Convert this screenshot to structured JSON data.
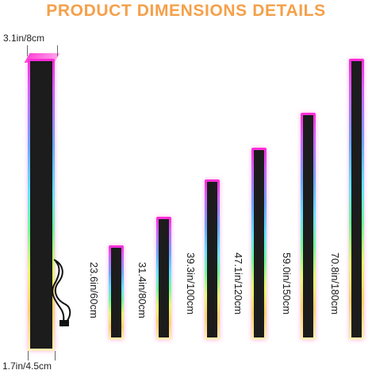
{
  "title": "PRODUCT DIMENSIONS DETAILS",
  "dimensions": {
    "top": "3.1in/8cm",
    "bottom": "1.7in/4.5cm"
  },
  "bars": [
    {
      "label": "23.6in/60cm"
    },
    {
      "label": "31.4in/80cm"
    },
    {
      "label": "39.3in/100cm"
    },
    {
      "label": "47.1in/120cm"
    },
    {
      "label": "59.0in/150cm"
    },
    {
      "label": "70.8in/180cm"
    }
  ],
  "colors": {
    "title": "#f5a04a",
    "bar_body": "#1c1c1c",
    "glow_top": "#ff2bd6",
    "glow_bottom": "#fff0b8"
  }
}
